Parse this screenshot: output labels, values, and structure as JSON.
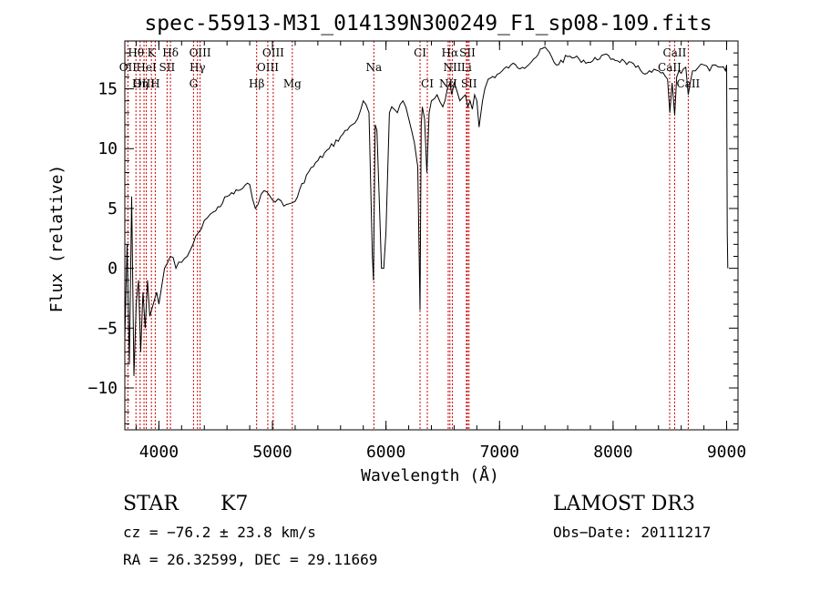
{
  "chart_data": {
    "type": "line",
    "title": "spec-55913-M31_014139N300249_F1_sp08-109.fits",
    "xlabel": "Wavelength (Å)",
    "ylabel": "Flux (relative)",
    "xlim": [
      3700,
      9100
    ],
    "ylim": [
      -13.5,
      19
    ],
    "xticks": [
      4000,
      5000,
      6000,
      7000,
      8000,
      9000
    ],
    "yticks": [
      -10,
      -5,
      0,
      5,
      10,
      15
    ],
    "series": [
      {
        "name": "spectrum",
        "x": [
          3700,
          3720,
          3740,
          3760,
          3780,
          3800,
          3820,
          3840,
          3860,
          3880,
          3900,
          3920,
          3950,
          3980,
          4000,
          4050,
          4100,
          4150,
          4200,
          4250,
          4300,
          4350,
          4400,
          4450,
          4500,
          4600,
          4700,
          4800,
          4850,
          4900,
          4950,
          5000,
          5050,
          5100,
          5150,
          5200,
          5300,
          5400,
          5500,
          5600,
          5700,
          5750,
          5800,
          5850,
          5880,
          5890,
          5895,
          5905,
          5920,
          5960,
          5980,
          6000,
          6030,
          6050,
          6100,
          6150,
          6200,
          6250,
          6280,
          6300,
          6310,
          6320,
          6340,
          6360,
          6380,
          6400,
          6450,
          6500,
          6540,
          6563,
          6580,
          6600,
          6650,
          6700,
          6720,
          6740,
          6760,
          6780,
          6800,
          6820,
          6850,
          6870,
          6900,
          7000,
          7100,
          7200,
          7300,
          7400,
          7500,
          7600,
          7700,
          7800,
          7900,
          8000,
          8100,
          8200,
          8300,
          8400,
          8480,
          8500,
          8520,
          8542,
          8560,
          8580,
          8600,
          8640,
          8662,
          8700,
          8750,
          8800,
          8850,
          8900,
          8950,
          8990,
          9000,
          9005,
          9010
        ],
        "y": [
          -6,
          2,
          -8,
          6,
          -9,
          -3,
          -1,
          -7,
          -2,
          -5,
          -1,
          -4,
          -3,
          -2,
          -3,
          0,
          1,
          0,
          0.5,
          1,
          2,
          3,
          4,
          4.5,
          4.8,
          6,
          6.5,
          7,
          5,
          6.2,
          6.4,
          5.7,
          5.8,
          5.2,
          5.4,
          5.6,
          7.8,
          9,
          10,
          11,
          12,
          12.5,
          14,
          13,
          1,
          -1,
          4,
          12,
          11.5,
          0,
          0,
          3,
          13,
          13.5,
          13,
          14,
          12.5,
          10.5,
          8.5,
          -3.5,
          12,
          13.5,
          12.5,
          8,
          13,
          14,
          14.5,
          13.5,
          15,
          15.5,
          14.5,
          15.5,
          14,
          14.5,
          13.5,
          14,
          13.3,
          14.5,
          14,
          11.8,
          14,
          15,
          15.8,
          16.3,
          17,
          16.8,
          17.5,
          18.5,
          17,
          17.7,
          17.5,
          17.2,
          17.8,
          17.5,
          17.3,
          16.8,
          16.3,
          16.5,
          15.8,
          13,
          15.5,
          12.8,
          16,
          16.5,
          16.3,
          16.8,
          14.5,
          16.5,
          16.8,
          17,
          16.5,
          17,
          16.8,
          16.5,
          17,
          3,
          0
        ]
      }
    ],
    "annotations": [
      {
        "label": "Hθ",
        "wavelength": 3798,
        "row": 1
      },
      {
        "label": "K",
        "wavelength": 3934,
        "row": 1
      },
      {
        "label": "Hδ",
        "wavelength": 4102,
        "row": 1
      },
      {
        "label": "OIII",
        "wavelength": 4363,
        "row": 1
      },
      {
        "label": "OIII",
        "wavelength": 5007,
        "row": 1
      },
      {
        "label": "CI",
        "wavelength": 6300,
        "row": 1
      },
      {
        "label": "Hα",
        "wavelength": 6563,
        "row": 1
      },
      {
        "label": "SII",
        "wavelength": 6717,
        "row": 1
      },
      {
        "label": "CaII",
        "wavelength": 8542,
        "row": 1
      },
      {
        "label": "OII",
        "wavelength": 3727,
        "row": 2
      },
      {
        "label": "HeI",
        "wavelength": 3889,
        "row": 2
      },
      {
        "label": "SII",
        "wavelength": 4072,
        "row": 2
      },
      {
        "label": "Hγ",
        "wavelength": 4340,
        "row": 2
      },
      {
        "label": "OIII",
        "wavelength": 4959,
        "row": 2
      },
      {
        "label": "Na",
        "wavelength": 5893,
        "row": 2
      },
      {
        "label": "NII",
        "wavelength": 6584,
        "row": 2
      },
      {
        "label": "Li",
        "wavelength": 6708,
        "row": 2
      },
      {
        "label": "CaII",
        "wavelength": 8498,
        "row": 2
      },
      {
        "label": "OIII",
        "wavelength": 3869,
        "row": 3
      },
      {
        "label": "Hη",
        "wavelength": 3835,
        "row": 3
      },
      {
        "label": "H",
        "wavelength": 3968,
        "row": 3
      },
      {
        "label": "G",
        "wavelength": 4305,
        "row": 3
      },
      {
        "label": "Hβ",
        "wavelength": 4861,
        "row": 3
      },
      {
        "label": "Mg",
        "wavelength": 5175,
        "row": 3
      },
      {
        "label": "CI",
        "wavelength": 6364,
        "row": 3
      },
      {
        "label": "NII",
        "wavelength": 6548,
        "row": 3
      },
      {
        "label": "SII",
        "wavelength": 6731,
        "row": 3
      },
      {
        "label": "CaII",
        "wavelength": 8662,
        "row": 3
      }
    ],
    "grid": false,
    "legend": "none"
  },
  "info": {
    "object_class": "STAR",
    "subclass": "K7",
    "survey": "LAMOST DR3",
    "redshift": "cz = −76.2 ± 23.8 km/s",
    "obs_date": "Obs−Date: 20111217",
    "coords": "RA =  26.32599, DEC =  29.11669"
  },
  "colors": {
    "line": "#000000",
    "marker_line": "#cc0000",
    "background": "#ffffff"
  }
}
